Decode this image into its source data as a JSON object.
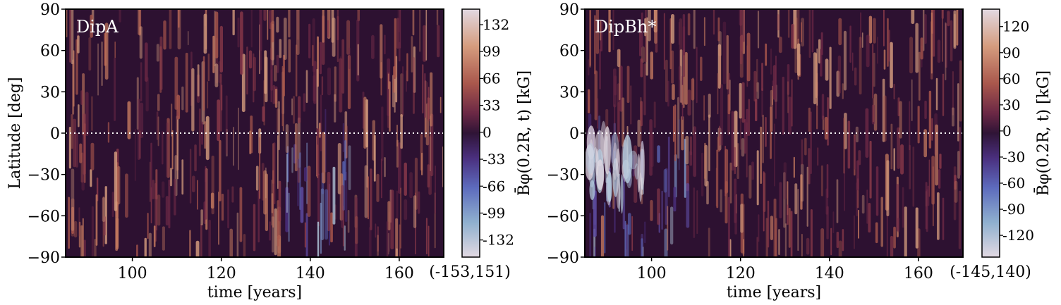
{
  "chart_data": [
    {
      "type": "heatmap",
      "title": "DipA",
      "xlabel": "time [years]",
      "ylabel": "Latitude [deg]",
      "xlim": [
        85,
        170
      ],
      "ylim": [
        -90,
        90
      ],
      "xticks": [
        100,
        120,
        140,
        160
      ],
      "yticks": [
        90,
        60,
        30,
        0,
        -30,
        -60,
        -90
      ],
      "ytick_labels": [
        "90",
        "60",
        "30",
        "0",
        "−30",
        "−60",
        "−90"
      ],
      "equator_line": true,
      "colorbar": {
        "label": "B̄φ(0.2R, t) [kG]",
        "ticks": [
          132,
          99,
          66,
          33,
          0,
          -33,
          -66,
          -99,
          -132
        ],
        "tick_labels": [
          "132",
          "99",
          "66",
          "33",
          "0",
          "-33",
          "-66",
          "-99",
          "-132"
        ],
        "range_label": "(-153,151)",
        "vmin": -153,
        "vmax": 151
      }
    },
    {
      "type": "heatmap",
      "title": "DipBh*",
      "xlabel": "time [years]",
      "ylabel": "",
      "xlim": [
        85,
        170
      ],
      "ylim": [
        -90,
        90
      ],
      "xticks": [
        100,
        120,
        140,
        160
      ],
      "yticks": [
        90,
        60,
        30,
        0,
        -30,
        -60,
        -90
      ],
      "ytick_labels": [
        "90",
        "60",
        "30",
        "0",
        "−30",
        "−60",
        "−90"
      ],
      "equator_line": true,
      "colorbar": {
        "label": "B̄φ(0.2R, t) [kG]",
        "ticks": [
          120,
          90,
          60,
          30,
          0,
          -30,
          -60,
          -90,
          -120
        ],
        "tick_labels": [
          "120",
          "90",
          "60",
          "30",
          "0",
          "-30",
          "-60",
          "-90",
          "-120"
        ],
        "range_label": "(-145,140)",
        "vmin": -145,
        "vmax": 140
      }
    }
  ],
  "colors": {
    "background": "#2d1131",
    "frame": "#000000",
    "equator_line_left": "#ffffff",
    "equator_line_right": "#ffffff",
    "colormap_twilight_shifted": [
      "#2f1436",
      "#6b2845",
      "#a9574c",
      "#d59c7e",
      "#e2d9e2",
      "#8fb0cf",
      "#5d6bbd",
      "#4a2f7e",
      "#2f1436"
    ]
  }
}
